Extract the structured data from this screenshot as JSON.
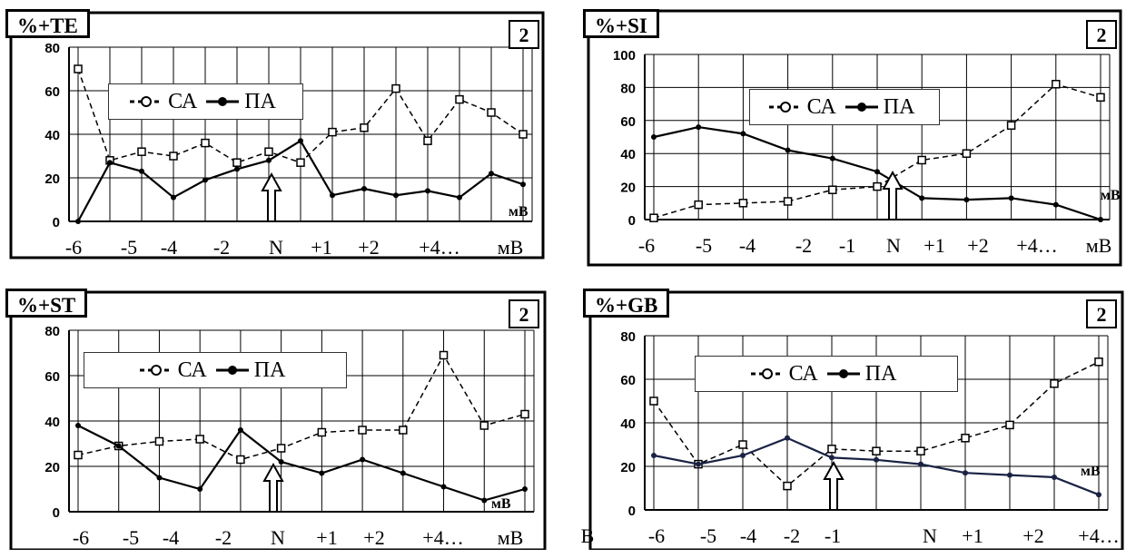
{
  "chart_data": [
    {
      "type": "line",
      "panel_title": "%+TE",
      "panel_number": "2",
      "legend": [
        "СА",
        "ПА"
      ],
      "ylim": [
        0,
        80
      ],
      "yticks": [
        "0",
        "20",
        "40",
        "60",
        "80"
      ],
      "xtick_labels": [
        "-6",
        "-5",
        "-4",
        "-2",
        "N",
        "+1",
        "+2",
        "+4…",
        "мВ"
      ],
      "unit_label": "мВ",
      "arrow_at": "N",
      "series": [
        {
          "name": "СА",
          "style": "dashed-open",
          "values": [
            70,
            28,
            32,
            30,
            36,
            27,
            32,
            27,
            41,
            43,
            61,
            37,
            56,
            50,
            40
          ]
        },
        {
          "name": "ПА",
          "style": "solid-filled",
          "values": [
            0,
            27,
            23,
            11,
            19,
            24,
            28,
            37,
            12,
            15,
            12,
            14,
            11,
            22,
            17
          ]
        }
      ],
      "grid": true
    },
    {
      "type": "line",
      "panel_title": "%+SI",
      "panel_number": "2",
      "legend": [
        "СА",
        "ПА"
      ],
      "ylim": [
        0,
        100
      ],
      "yticks": [
        "0",
        "20",
        "40",
        "60",
        "80",
        "100"
      ],
      "xtick_labels": [
        "-6",
        "-5",
        "-4",
        "-2",
        "-1",
        "N",
        "+1",
        "+2",
        "+4…",
        "мВ"
      ],
      "unit_label": "мВ",
      "arrow_at": "N",
      "series": [
        {
          "name": "СА",
          "style": "dashed-open",
          "values": [
            1,
            9,
            10,
            11,
            18,
            20,
            36,
            40,
            57,
            82,
            74
          ]
        },
        {
          "name": "ПА",
          "style": "solid-filled",
          "values": [
            50,
            56,
            52,
            42,
            37,
            29,
            13,
            12,
            13,
            9,
            0
          ]
        }
      ],
      "grid": true
    },
    {
      "type": "line",
      "panel_title": "%+ST",
      "panel_number": "2",
      "legend": [
        "СА",
        "ПА"
      ],
      "ylim": [
        0,
        80
      ],
      "yticks": [
        "0",
        "20",
        "40",
        "60",
        "80"
      ],
      "xtick_labels": [
        "-6",
        "-5",
        "-4",
        "-2",
        "N",
        "+1",
        "+2",
        "+4…",
        "мВ"
      ],
      "unit_label": "мВ",
      "arrow_at": "N",
      "series": [
        {
          "name": "СА",
          "style": "dashed-open",
          "values": [
            25,
            29,
            31,
            32,
            23,
            28,
            35,
            36,
            36,
            69,
            38,
            43
          ]
        },
        {
          "name": "ПА",
          "style": "solid-filled",
          "values": [
            38,
            29,
            15,
            10,
            36,
            22,
            17,
            23,
            17,
            11,
            5,
            10
          ]
        }
      ],
      "grid": true
    },
    {
      "type": "line",
      "panel_title": "%+GB",
      "panel_number": "2",
      "legend": [
        "СА",
        "ПА"
      ],
      "ylim": [
        0,
        80
      ],
      "yticks": [
        "0",
        "20",
        "40",
        "60",
        "80"
      ],
      "xtick_labels": [
        "-6",
        "-5",
        "-4",
        "-2",
        "-1",
        "N",
        "+1",
        "+2",
        "+4…",
        "мВ"
      ],
      "unit_label": "мВ",
      "arrow_at": "N",
      "series": [
        {
          "name": "СА",
          "style": "dashed-open",
          "values": [
            50,
            21,
            30,
            11,
            28,
            27,
            27,
            33,
            39,
            58,
            68
          ]
        },
        {
          "name": "ПА",
          "style": "solid-filled",
          "values": [
            25,
            21,
            25,
            33,
            24,
            23,
            21,
            17,
            16,
            15,
            7
          ]
        }
      ],
      "grid": true
    }
  ],
  "colors": {
    "line": "#000000",
    "grid": "#000000",
    "ga_series": "#1a2244"
  }
}
